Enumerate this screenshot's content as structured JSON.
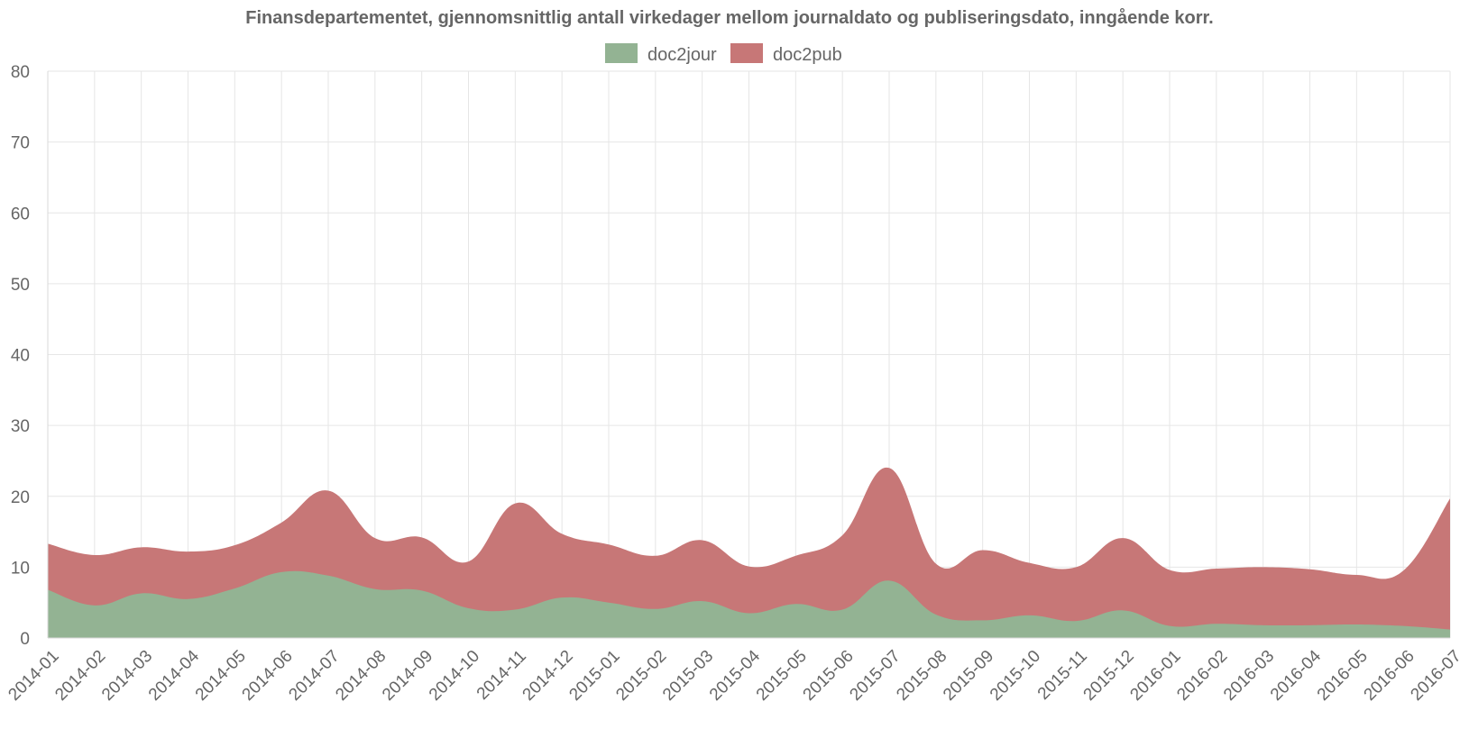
{
  "chart_data": {
    "type": "area",
    "stacked": true,
    "title": "Finansdepartementet, gjennomsnittlig antall virkedager mellom journaldato og publiseringsdato, inngående korr.",
    "xlabel": "",
    "ylabel": "",
    "ylim": [
      0,
      80
    ],
    "yticks": [
      0,
      10,
      20,
      30,
      40,
      50,
      60,
      70,
      80
    ],
    "grid": true,
    "legend_position": "top",
    "categories": [
      "2014-01",
      "2014-02",
      "2014-03",
      "2014-04",
      "2014-05",
      "2014-06",
      "2014-07",
      "2014-08",
      "2014-09",
      "2014-10",
      "2014-11",
      "2014-12",
      "2015-01",
      "2015-02",
      "2015-03",
      "2015-04",
      "2015-05",
      "2015-06",
      "2015-07",
      "2015-08",
      "2015-09",
      "2015-10",
      "2015-11",
      "2015-12",
      "2016-01",
      "2016-02",
      "2016-03",
      "2016-04",
      "2016-05",
      "2016-06",
      "2016-07"
    ],
    "series": [
      {
        "name": "doc2jour",
        "color": "#93b393",
        "values": [
          6.8,
          4.6,
          6.3,
          5.5,
          7.0,
          9.3,
          8.8,
          6.9,
          6.7,
          4.2,
          4.0,
          5.7,
          5.0,
          4.1,
          5.2,
          3.5,
          4.8,
          4.0,
          8.1,
          3.3,
          2.5,
          3.2,
          2.4,
          3.9,
          1.7,
          2.0,
          1.8,
          1.8,
          1.9,
          1.7,
          1.2
        ]
      },
      {
        "name": "doc2pub",
        "color": "#c77777",
        "values": [
          6.5,
          7.1,
          6.5,
          6.7,
          6.1,
          7.0,
          12.0,
          7.2,
          7.5,
          6.6,
          15.0,
          9.0,
          8.2,
          7.5,
          8.6,
          6.6,
          6.8,
          10.5,
          15.9,
          7.2,
          9.9,
          7.4,
          7.6,
          10.2,
          7.9,
          7.8,
          8.2,
          7.9,
          7.0,
          7.8,
          18.5
        ]
      }
    ]
  }
}
